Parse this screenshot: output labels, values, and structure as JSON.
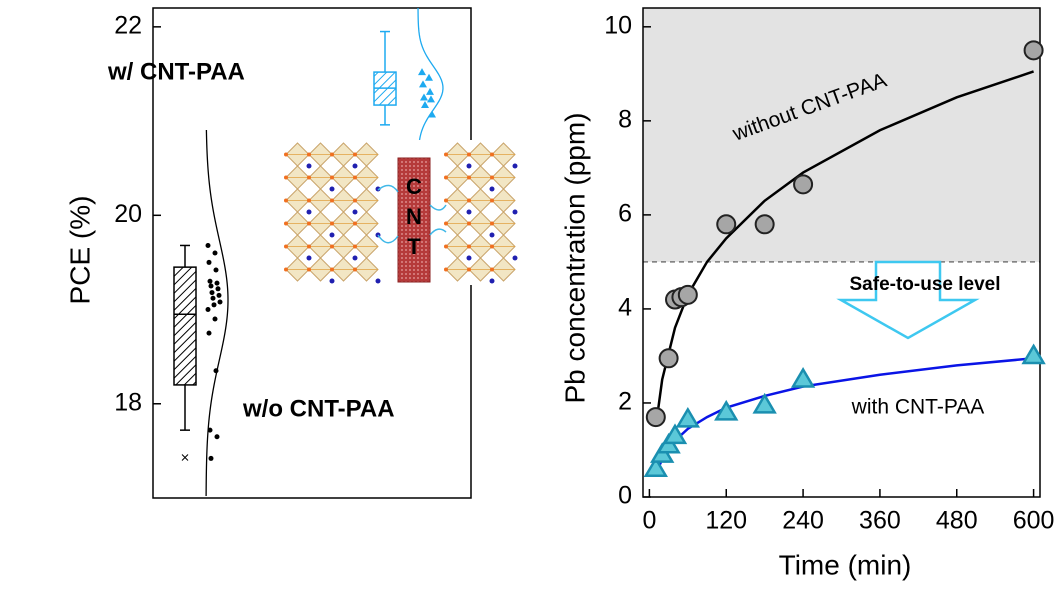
{
  "chart_data": [
    {
      "type": "box",
      "ylabel": "PCE (%)",
      "ylim": [
        17,
        22.2
      ],
      "yticks": [
        18,
        20,
        22
      ],
      "series": [
        {
          "name": "w/o CNT-PAA",
          "color": "#000000",
          "q1": 18.2,
          "median": 18.95,
          "q3": 19.45,
          "whisker_low": 17.72,
          "whisker_high": 19.68,
          "outliers": [
            17.43
          ],
          "points": [
            19.68,
            19.6,
            19.5,
            19.42,
            19.3,
            19.28,
            19.25,
            19.22,
            19.18,
            19.15,
            19.12,
            19.08,
            19.05,
            19.0,
            18.9,
            18.75,
            18.35,
            17.72,
            17.65,
            17.42
          ]
        },
        {
          "name": "w/ CNT-PAA",
          "color": "#1eaaf0",
          "q1": 21.17,
          "median": 21.35,
          "q3": 21.52,
          "whisker_low": 20.96,
          "whisker_high": 21.95,
          "points": [
            21.52,
            21.46,
            21.39,
            21.31,
            21.25,
            21.23,
            21.17,
            21.07
          ]
        }
      ],
      "inset_labels": [
        "C",
        "N",
        "T"
      ]
    },
    {
      "type": "scatter",
      "xlabel": "Time (min)",
      "ylabel": "Pb concentration (ppm)",
      "xlim": [
        -10,
        610
      ],
      "xticks": [
        0,
        120,
        240,
        360,
        480,
        600
      ],
      "ylim": [
        0,
        10.4
      ],
      "yticks": [
        0,
        2,
        4,
        6,
        8,
        10
      ],
      "safe_level": 5,
      "safe_label": "Safe-to-use level",
      "series": [
        {
          "name": "without CNT-PAA",
          "color": "#a6a6a6",
          "marker": "circle",
          "x": [
            10,
            30,
            40,
            50,
            60,
            120,
            180,
            240,
            600
          ],
          "values": [
            1.7,
            2.95,
            4.2,
            4.25,
            4.3,
            5.8,
            5.8,
            6.65,
            9.5
          ],
          "fit": {
            "color": "#000000",
            "x": [
              10,
              20,
              40,
              60,
              90,
              120,
              180,
              240,
              360,
              480,
              600
            ],
            "values": [
              1.5,
              2.5,
              3.6,
              4.3,
              5.0,
              5.5,
              6.3,
              6.9,
              7.8,
              8.5,
              9.05
            ]
          }
        },
        {
          "name": "with CNT-PAA",
          "color": "#5bc8d8",
          "marker": "triangle",
          "x": [
            10,
            20,
            30,
            40,
            60,
            120,
            180,
            240,
            600
          ],
          "values": [
            0.6,
            0.9,
            1.1,
            1.3,
            1.65,
            1.8,
            1.95,
            2.5,
            3.0
          ],
          "fit": {
            "color": "#0a14e6",
            "x": [
              10,
              20,
              40,
              60,
              90,
              120,
              180,
              240,
              360,
              480,
              600
            ],
            "values": [
              0.5,
              0.8,
              1.2,
              1.45,
              1.7,
              1.9,
              2.15,
              2.35,
              2.6,
              2.8,
              2.95
            ]
          }
        }
      ]
    }
  ]
}
